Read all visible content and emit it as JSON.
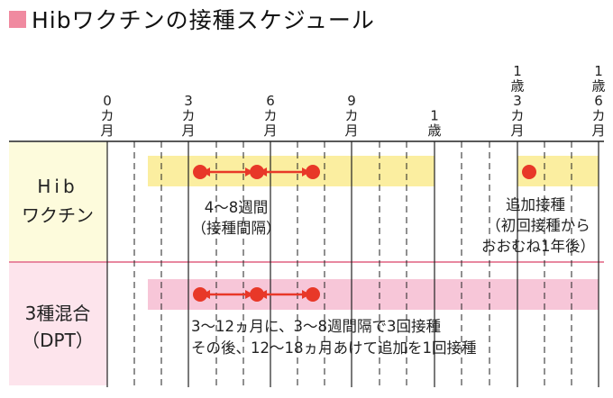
{
  "title": "Hibワクチンの接種スケジュール",
  "accent_color": "#f08aa0",
  "time_axis": [
    {
      "id": "m0",
      "label": [
        "0",
        "カ",
        "月"
      ]
    },
    {
      "id": "m3",
      "label": [
        "3",
        "カ",
        "月"
      ]
    },
    {
      "id": "m6",
      "label": [
        "6",
        "カ",
        "月"
      ]
    },
    {
      "id": "m9",
      "label": [
        "9",
        "カ",
        "月"
      ]
    },
    {
      "id": "y1",
      "label": [
        "1",
        "歳"
      ]
    },
    {
      "id": "y1m3",
      "label": [
        "1",
        "歳",
        "3",
        "カ",
        "月"
      ]
    },
    {
      "id": "y1m6",
      "label": [
        "1",
        "歳",
        "6",
        "カ",
        "月"
      ]
    }
  ],
  "rows": [
    {
      "id": "hib",
      "label": [
        "Hib",
        "ワクチン"
      ],
      "label_bg": "#fdfbdc",
      "band_color": "#fbeea0",
      "dot_color": "#e83828",
      "arrow_color": "#e83828",
      "notes": [
        {
          "id": "interval",
          "lines": [
            "4～8週間",
            "（接種間隔）"
          ]
        },
        {
          "id": "booster",
          "lines": [
            "追加接種",
            "（初回接種から",
            "おおむね1年後）"
          ]
        }
      ]
    },
    {
      "id": "dpt",
      "label": [
        "3種混合",
        "（DPT）"
      ],
      "label_bg": "#fde4ec",
      "band_color": "#f7c6d8",
      "dot_color": "#e83828",
      "arrow_color": "#e83828",
      "notes": [
        {
          "id": "schedule",
          "lines": [
            "3～12ヵ月に、3～8週間隔で3回接種",
            "その後、12～18ヵ月あけて追加を1回接種"
          ]
        }
      ]
    }
  ]
}
